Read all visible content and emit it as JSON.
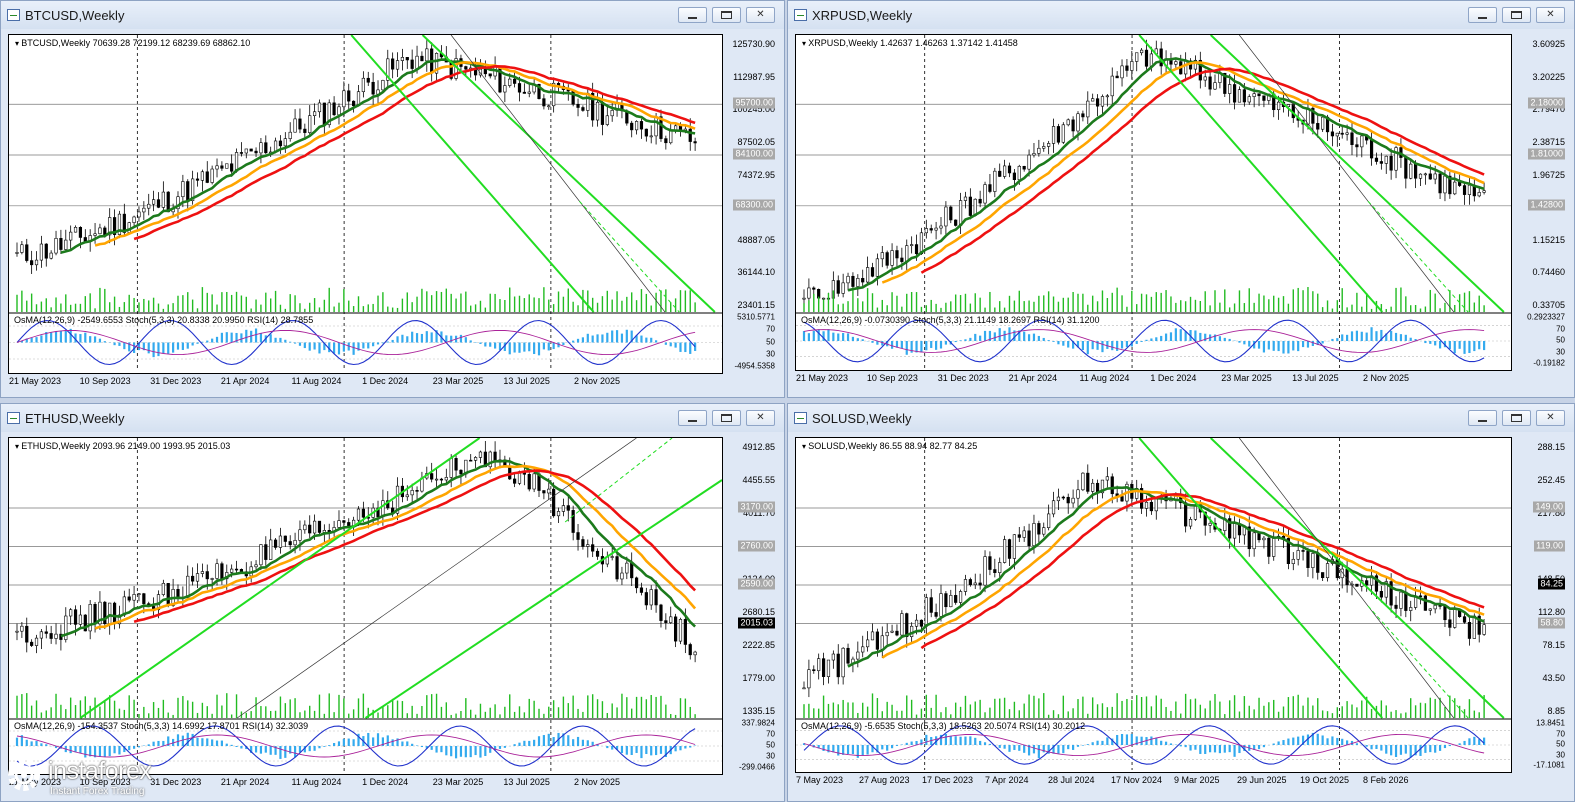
{
  "panels": [
    {
      "window_title": "BTCUSD,Weekly",
      "info": "BTCUSD,Weekly  70639.28 72199.12 68239.69 68862.10",
      "osc": "OsMA(12,26,9) -2549.6553  Stoch(5,3,3) 20.8338 20.9950  RSI(14) 28.7855",
      "price_ticks": [
        "125730.90",
        "112987.95",
        "100245.00",
        "87502.05",
        "74372.95",
        "61630.00",
        "48887.05",
        "36144.10",
        "23401.15"
      ],
      "levels": [
        {
          "label": "95700.00",
          "kind": "level"
        },
        {
          "label": "84100.00",
          "kind": "level"
        },
        {
          "label": "68300.00",
          "kind": "level"
        }
      ],
      "osc_ticks": [
        "5310.5771",
        "70",
        "50",
        "30",
        "-4954.5358"
      ],
      "dates": [
        "21 May 2023",
        "10 Sep 2023",
        "31 Dec 2023",
        "21 Apr 2024",
        "11 Aug 2024",
        "1 Dec 2024",
        "23 Mar 2025",
        "13 Jul 2025",
        "2 Nov 2025"
      ]
    },
    {
      "window_title": "XRPUSD,Weekly",
      "info": "XRPUSD,Weekly  1.42637 1.46263 1.37142 1.41458",
      "osc": "OsMA(12,26,9) -0.0730390  Stoch(5,3,3) 21.1149 18.2697  RSI(14) 31.1200",
      "price_ticks": [
        "3.60925",
        "3.20225",
        "2.79470",
        "2.38715",
        "1.96725",
        "1.55970",
        "1.15215",
        "0.74460",
        "0.33705"
      ],
      "levels": [
        {
          "label": "2.18000",
          "kind": "level"
        },
        {
          "label": "1.81000",
          "kind": "level"
        },
        {
          "label": "1.42800",
          "kind": "level"
        }
      ],
      "osc_ticks": [
        "0.2923327",
        "70",
        "50",
        "30",
        "-0.19182"
      ],
      "dates": [
        "21 May 2023",
        "10 Sep 2023",
        "31 Dec 2023",
        "21 Apr 2024",
        "11 Aug 2024",
        "1 Dec 2024",
        "23 Mar 2025",
        "13 Jul 2025",
        "2 Nov 2025"
      ]
    },
    {
      "window_title": "ETHUSD,Weekly",
      "info": "ETHUSD,Weekly  2093.96 2149.00 1993.95 2015.03",
      "osc": "OsMA(12,26,9) -154.3537  Stoch(5,3,3) 14.6992 17.8701  RSI(14) 32.3039",
      "price_ticks": [
        "4912.85",
        "4455.55",
        "4011.70",
        "3567.85",
        "3124.00",
        "2680.15",
        "2222.85",
        "1779.00",
        "1335.15"
      ],
      "levels": [
        {
          "label": "3170.00",
          "kind": "level"
        },
        {
          "label": "2760.00",
          "kind": "level"
        },
        {
          "label": "2590.00",
          "kind": "level"
        },
        {
          "label": "2015.03",
          "kind": "current"
        }
      ],
      "osc_ticks": [
        "337.9824",
        "70",
        "50",
        "30",
        "-299.0466"
      ],
      "dates": [
        "21 May 2023",
        "10 Sep 2023",
        "31 Dec 2023",
        "21 Apr 2024",
        "11 Aug 2024",
        "1 Dec 2024",
        "23 Mar 2025",
        "13 Jul 2025",
        "2 Nov 2025"
      ]
    },
    {
      "window_title": "SOLUSD,Weekly",
      "info": "SOLUSD,Weekly  86.55 88.94 82.77 84.25",
      "osc": "OsMA(12,26,9) -5.6535  Stoch(5,3,3) 18.5263 20.5074  RSI(14) 30.2012",
      "price_ticks": [
        "288.15",
        "252.45",
        "217.80",
        "183.15",
        "148.50",
        "112.80",
        "78.15",
        "43.50",
        "8.85"
      ],
      "levels": [
        {
          "label": "149.00",
          "kind": "level"
        },
        {
          "label": "119.00",
          "kind": "level"
        },
        {
          "label": "84.25",
          "kind": "current"
        },
        {
          "label": "58.80",
          "kind": "level"
        }
      ],
      "osc_ticks": [
        "13.8451",
        "70",
        "50",
        "30",
        "-17.1081"
      ],
      "dates": [
        "7 May 2023",
        "27 Aug 2023",
        "17 Dec 2023",
        "7 Apr 2024",
        "28 Jul 2024",
        "17 Nov 2024",
        "9 Mar 2025",
        "29 Jun 2025",
        "19 Oct 2025",
        "8 Feb 2026"
      ]
    }
  ],
  "colors": {
    "ma_fast": "#1c7a1c",
    "ma_mid": "#ffa500",
    "ma_slow": "#ee1111",
    "channel": "#22dd22",
    "histogram": "#33aaee",
    "stoch": "#2233cc",
    "rsi": "#aa2299"
  },
  "branding": {
    "name": "instaforex",
    "tagline": "Instant Forex Trading"
  }
}
